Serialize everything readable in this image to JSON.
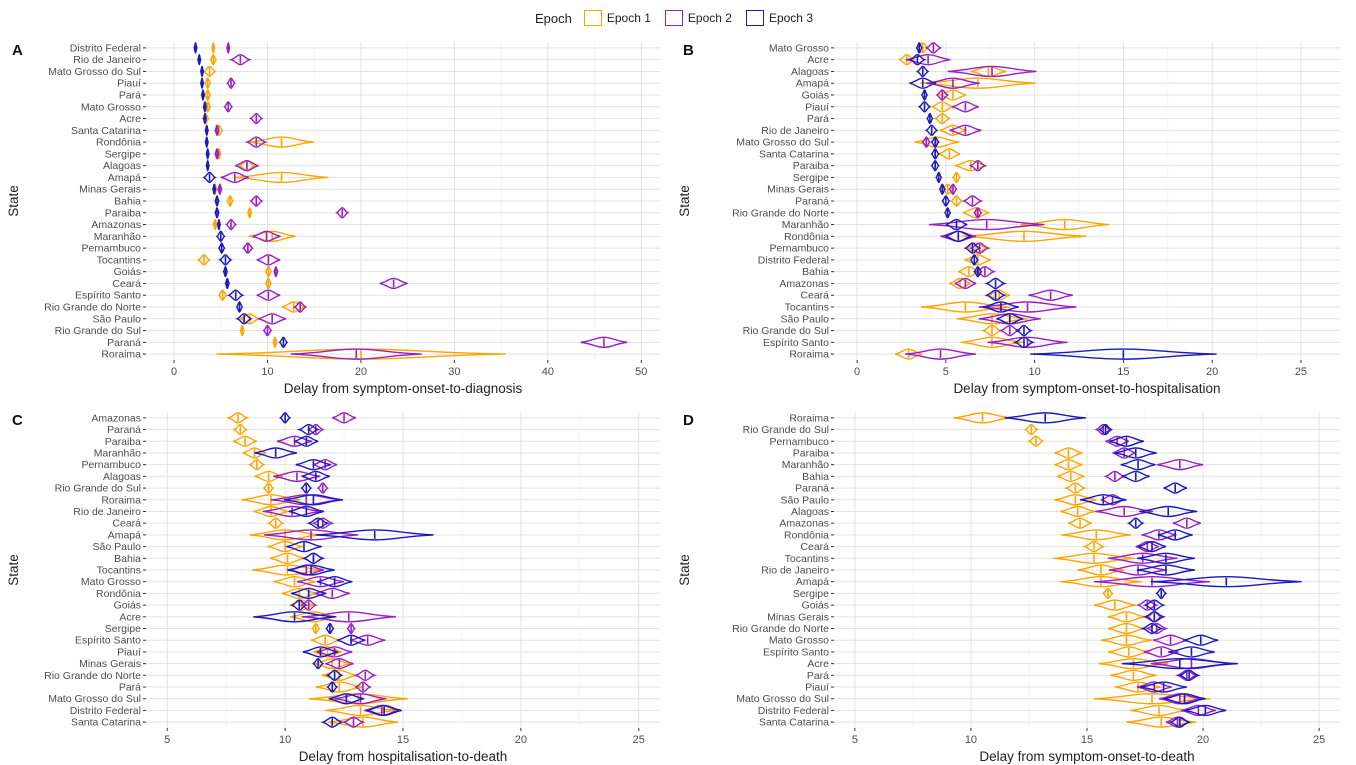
{
  "legend": {
    "title": "Epoch",
    "items": [
      {
        "label": "Epoch 1",
        "color": "#FFA500"
      },
      {
        "label": "Epoch 2",
        "color": "#9B1FC7"
      },
      {
        "label": "Epoch 3",
        "color": "#1A1ABF"
      }
    ]
  },
  "chart_data": [
    {
      "type": "violin",
      "panel": "A",
      "xlabel": "Delay from symptom-onset-to-diagnosis",
      "ylabel": "State",
      "xlim": [
        -3,
        52
      ],
      "xticks": [
        0,
        10,
        20,
        30,
        40,
        50
      ],
      "grid": true,
      "categories": [
        "Distrito Federal",
        "Rio de Janeiro",
        "Mato Grosso do Sul",
        "Piauí",
        "Pará",
        "Mato Grosso",
        "Acre",
        "Santa Catarina",
        "Rondônia",
        "Sergipe",
        "Alagoas",
        "Amapá",
        "Minas Gerais",
        "Bahia",
        "Paraiba",
        "Amazonas",
        "Maranhão",
        "Pernambuco",
        "Tocantins",
        "Goiás",
        "Ceará",
        "Espírito Santo",
        "Rio Grande do Norte",
        "São Paulo",
        "Rio Grande do Sul",
        "Paraná",
        "Roraima"
      ],
      "series": [
        {
          "name": "Epoch 1",
          "values": [
            4.2,
            4.2,
            3.8,
            3.6,
            3.6,
            3.6,
            3.4,
            4.8,
            11.5,
            4.8,
            7.8,
            11.5,
            4.4,
            6.0,
            8.1,
            4.4,
            10.5,
            7.9,
            3.2,
            10.1,
            10.1,
            5.2,
            12.8,
            8.1,
            7.3,
            10.8,
            20.0
          ],
          "widths": [
            0.3,
            0.6,
            1.2,
            0.6,
            0.6,
            0.6,
            0.6,
            0.8,
            7.0,
            0.4,
            1.6,
            10.0,
            0.3,
            0.6,
            0.4,
            0.4,
            5.0,
            1.0,
            1.2,
            0.6,
            0.6,
            0.8,
            2.5,
            2.0,
            0.4,
            0.4,
            31.0
          ]
        },
        {
          "name": "Epoch 2",
          "values": [
            5.8,
            7.1,
            null,
            6.1,
            null,
            5.8,
            8.8,
            4.6,
            8.8,
            4.6,
            7.8,
            6.5,
            4.9,
            8.8,
            18.0,
            6.1,
            9.9,
            7.9,
            10.1,
            10.9,
            23.5,
            10.1,
            13.5,
            10.5,
            10.0,
            46.0,
            19.5
          ],
          "widths": [
            0.3,
            2.0,
            null,
            0.8,
            null,
            0.8,
            1.2,
            0.4,
            2.0,
            0.4,
            2.5,
            3.0,
            0.4,
            1.2,
            1.2,
            1.0,
            3.0,
            1.0,
            2.5,
            0.4,
            3.0,
            2.5,
            1.2,
            3.0,
            0.8,
            5.0,
            14.0
          ]
        },
        {
          "name": "Epoch 3",
          "values": [
            2.3,
            2.7,
            3.0,
            3.0,
            3.1,
            3.3,
            3.3,
            3.5,
            3.5,
            3.6,
            3.6,
            3.8,
            4.3,
            4.6,
            4.6,
            4.8,
            5.0,
            5.1,
            5.5,
            5.5,
            5.7,
            6.6,
            7.0,
            7.5,
            null,
            11.7,
            null
          ],
          "widths": [
            0.3,
            0.3,
            0.3,
            0.3,
            0.3,
            0.3,
            0.3,
            0.3,
            0.3,
            0.3,
            0.3,
            1.2,
            0.3,
            0.4,
            0.4,
            0.3,
            0.8,
            0.6,
            1.2,
            0.4,
            0.4,
            1.5,
            0.6,
            1.5,
            null,
            0.8,
            null
          ]
        }
      ]
    },
    {
      "type": "violin",
      "panel": "B",
      "xlabel": "Delay from symptom-onset-to-hospitalisation",
      "ylabel": "State",
      "xlim": [
        -1.3,
        27.2
      ],
      "xticks": [
        0,
        5,
        10,
        15,
        20,
        25
      ],
      "grid": true,
      "categories": [
        "Mato Grosso",
        "Acre",
        "Alagoas",
        "Amapá",
        "Goiás",
        "Piauí",
        "Pará",
        "Rio de Janeiro",
        "Mato Grosso do Sul",
        "Santa Catarina",
        "Paraiba",
        "Sergipe",
        "Minas Gerais",
        "Paraná",
        "Rio Grande do Norte",
        "Maranhão",
        "Rondônia",
        "Pernambuco",
        "Distrito Federal",
        "Bahia",
        "Amazonas",
        "Ceará",
        "Tocantins",
        "São Paulo",
        "Rio Grande do Sul",
        "Espírito Santo",
        "Roraima"
      ],
      "series": [
        {
          "name": "Epoch 1",
          "values": [
            3.7,
            2.8,
            7.4,
            6.8,
            5.4,
            4.8,
            4.8,
            5.4,
            4.5,
            5.2,
            6.4,
            5.6,
            5.1,
            5.6,
            6.7,
            11.7,
            9.4,
            6.7,
            6.8,
            6.3,
            5.8,
            8.0,
            6.1,
            7.6,
            7.6,
            7.6,
            2.9
          ],
          "widths": [
            0.6,
            0.8,
            2.0,
            6.5,
            1.5,
            1.2,
            0.8,
            1.5,
            2.5,
            1.2,
            1.8,
            0.4,
            0.6,
            0.6,
            1.5,
            5.0,
            7.0,
            1.2,
            1.5,
            1.2,
            1.2,
            1.2,
            5.0,
            4.0,
            1.0,
            3.5,
            1.5
          ]
        },
        {
          "name": "Epoch 2",
          "values": [
            4.3,
            4.0,
            7.6,
            5.4,
            4.8,
            6.1,
            null,
            6.1,
            3.9,
            null,
            6.8,
            null,
            5.4,
            6.5,
            6.8,
            7.3,
            5.7,
            6.9,
            null,
            7.2,
            6.1,
            10.9,
            9.6,
            8.6,
            8.6,
            9.6,
            4.7
          ],
          "widths": [
            0.8,
            2.5,
            5.0,
            3.0,
            0.6,
            1.5,
            null,
            1.8,
            0.4,
            null,
            0.8,
            null,
            0.4,
            1.0,
            0.4,
            6.5,
            2.0,
            1.0,
            null,
            1.0,
            1.2,
            2.5,
            5.5,
            3.5,
            1.0,
            4.5,
            4.0
          ]
        },
        {
          "name": "Epoch 3",
          "values": [
            3.5,
            3.4,
            3.7,
            3.7,
            3.8,
            3.8,
            4.1,
            4.2,
            4.4,
            4.4,
            4.4,
            4.6,
            4.8,
            5.0,
            5.1,
            5.6,
            5.7,
            6.5,
            6.6,
            6.8,
            7.8,
            7.8,
            8.1,
            8.6,
            9.4,
            9.4,
            15.0
          ],
          "widths": [
            0.3,
            0.8,
            0.6,
            1.5,
            0.3,
            0.6,
            0.3,
            0.6,
            0.4,
            0.4,
            0.4,
            0.3,
            0.3,
            0.4,
            0.3,
            1.2,
            1.5,
            0.8,
            0.4,
            0.4,
            1.0,
            1.0,
            2.0,
            1.5,
            0.8,
            1.0,
            10.5
          ]
        }
      ]
    },
    {
      "type": "violin",
      "panel": "C",
      "xlabel": "Delay from hospitalisation-to-death",
      "ylabel": "State",
      "xlim": [
        4.1,
        25.9
      ],
      "xticks": [
        5,
        10,
        15,
        20,
        25
      ],
      "grid": true,
      "categories": [
        "Amazonas",
        "Paraná",
        "Paraiba",
        "Maranhão",
        "Pernambuco",
        "Alagoas",
        "Rio Grande do Sul",
        "Roraima",
        "Rio de Janeiro",
        "Ceará",
        "Amapá",
        "São Paulo",
        "Bahia",
        "Tocantins",
        "Mato Grosso",
        "Rondônia",
        "Goiás",
        "Acre",
        "Sergipe",
        "Espírito Santo",
        "Piauí",
        "Minas Gerais",
        "Rio Grande do Norte",
        "Pará",
        "Mato Grosso do Sul",
        "Distrito Federal",
        "Santa Catarina"
      ],
      "series": [
        {
          "name": "Epoch 1",
          "values": [
            8.0,
            8.1,
            8.3,
            8.7,
            8.8,
            9.3,
            9.3,
            9.4,
            9.4,
            9.6,
            10.0,
            10.0,
            10.1,
            10.1,
            10.4,
            10.6,
            10.7,
            11.2,
            11.3,
            11.7,
            11.8,
            12.0,
            12.3,
            12.3,
            13.1,
            13.2,
            13.3
          ],
          "widths": [
            0.8,
            0.5,
            1.0,
            1.0,
            0.6,
            1.2,
            0.4,
            2.5,
            1.5,
            0.6,
            3.0,
            1.5,
            1.5,
            3.0,
            1.8,
            1.5,
            1.0,
            2.0,
            0.3,
            1.2,
            1.2,
            1.5,
            1.5,
            2.0,
            4.2,
            3.0,
            3.0
          ]
        },
        {
          "name": "Epoch 2",
          "values": [
            12.5,
            11.3,
            10.4,
            null,
            11.7,
            10.5,
            11.6,
            10.9,
            10.3,
            11.6,
            11.1,
            null,
            11.2,
            10.9,
            11.5,
            12.0,
            11.0,
            12.7,
            12.8,
            13.5,
            12.1,
            12.3,
            13.4,
            13.3,
            13.2,
            14.1,
            12.9
          ],
          "widths": [
            1.0,
            0.6,
            1.5,
            null,
            1.0,
            2.0,
            0.4,
            3.0,
            2.5,
            0.8,
            4.0,
            null,
            0.8,
            1.5,
            2.0,
            1.5,
            0.6,
            4.0,
            0.3,
            1.5,
            1.5,
            1.2,
            0.8,
            0.6,
            2.2,
            1.5,
            0.8
          ]
        },
        {
          "name": "Epoch 3",
          "values": [
            10.0,
            11.0,
            10.9,
            9.6,
            11.2,
            11.3,
            10.9,
            11.2,
            10.9,
            11.4,
            13.8,
            10.8,
            11.2,
            11.1,
            12.1,
            11.0,
            10.6,
            10.4,
            11.9,
            12.8,
            11.5,
            11.4,
            12.1,
            12.0,
            12.6,
            14.2,
            12.0
          ],
          "widths": [
            0.4,
            0.8,
            1.0,
            1.8,
            1.5,
            1.2,
            0.4,
            2.5,
            1.5,
            0.8,
            5.0,
            1.5,
            0.8,
            2.0,
            1.5,
            1.5,
            0.6,
            3.5,
            0.3,
            1.2,
            1.5,
            0.4,
            0.6,
            0.4,
            1.5,
            1.5,
            0.8
          ]
        }
      ]
    },
    {
      "type": "violin",
      "panel": "D",
      "xlabel": "Delay from symptom-onset-to-death",
      "ylabel": "State",
      "xlim": [
        4.1,
        25.9
      ],
      "xticks": [
        5,
        10,
        15,
        20,
        25
      ],
      "grid": true,
      "categories": [
        "Roraima",
        "Rio Grande do Sul",
        "Pernambuco",
        "Paraiba",
        "Maranhão",
        "Bahia",
        "Paraná",
        "São Paulo",
        "Alagoas",
        "Amazonas",
        "Rondônia",
        "Ceará",
        "Tocantins",
        "Rio de Janeiro",
        "Amapá",
        "Sergipe",
        "Goiás",
        "Minas Gerais",
        "Rio Grande do Norte",
        "Mato Grosso",
        "Espírito Santo",
        "Acre",
        "Pará",
        "Piauí",
        "Mato Grosso do Sul",
        "Distrito Federal",
        "Santa Catarina"
      ],
      "series": [
        {
          "name": "Epoch 1",
          "values": [
            10.5,
            12.6,
            12.8,
            14.2,
            14.2,
            14.3,
            14.5,
            14.5,
            14.6,
            14.7,
            15.4,
            15.3,
            15.3,
            15.6,
            15.6,
            15.9,
            16.2,
            16.7,
            16.7,
            16.7,
            16.8,
            17.0,
            17.0,
            17.2,
            17.8,
            18.1,
            18.2
          ],
          "widths": [
            2.5,
            0.5,
            0.6,
            1.2,
            1.2,
            1.2,
            0.8,
            1.8,
            1.5,
            1.0,
            3.0,
            0.8,
            3.5,
            2.0,
            3.5,
            0.4,
            1.8,
            1.6,
            1.6,
            2.2,
            1.8,
            3.0,
            2.0,
            2.0,
            5.0,
            2.5,
            3.0
          ]
        },
        {
          "name": "Epoch 2",
          "values": [
            null,
            15.7,
            16.3,
            16.6,
            19.0,
            16.2,
            null,
            16.1,
            16.6,
            19.3,
            18.1,
            17.6,
            17.4,
            17.2,
            17.8,
            null,
            17.6,
            17.9,
            18.0,
            18.6,
            18.2,
            19.5,
            19.3,
            17.9,
            19.0,
            19.8,
            18.9
          ],
          "widths": [
            null,
            0.6,
            1.0,
            1.0,
            2.0,
            0.8,
            null,
            1.0,
            2.5,
            1.2,
            1.5,
            1.0,
            3.0,
            2.5,
            5.0,
            null,
            0.8,
            0.6,
            0.8,
            1.5,
            1.5,
            3.5,
            0.8,
            1.5,
            1.8,
            1.5,
            1.0
          ]
        },
        {
          "name": "Epoch 3",
          "values": [
            13.2,
            15.8,
            16.7,
            17.1,
            17.2,
            17.1,
            18.8,
            15.7,
            18.5,
            17.1,
            18.8,
            17.8,
            18.4,
            18.4,
            21.0,
            18.2,
            17.9,
            17.9,
            17.8,
            19.9,
            19.5,
            19.0,
            19.4,
            18.3,
            19.2,
            20.1,
            19.0
          ],
          "widths": [
            3.5,
            0.5,
            1.5,
            1.8,
            1.5,
            1.2,
            1.0,
            2.0,
            2.5,
            0.6,
            1.5,
            1.2,
            2.5,
            2.5,
            6.5,
            0.4,
            0.8,
            0.8,
            0.8,
            1.5,
            2.0,
            5.0,
            0.8,
            2.0,
            1.8,
            1.8,
            0.8
          ]
        }
      ]
    }
  ]
}
